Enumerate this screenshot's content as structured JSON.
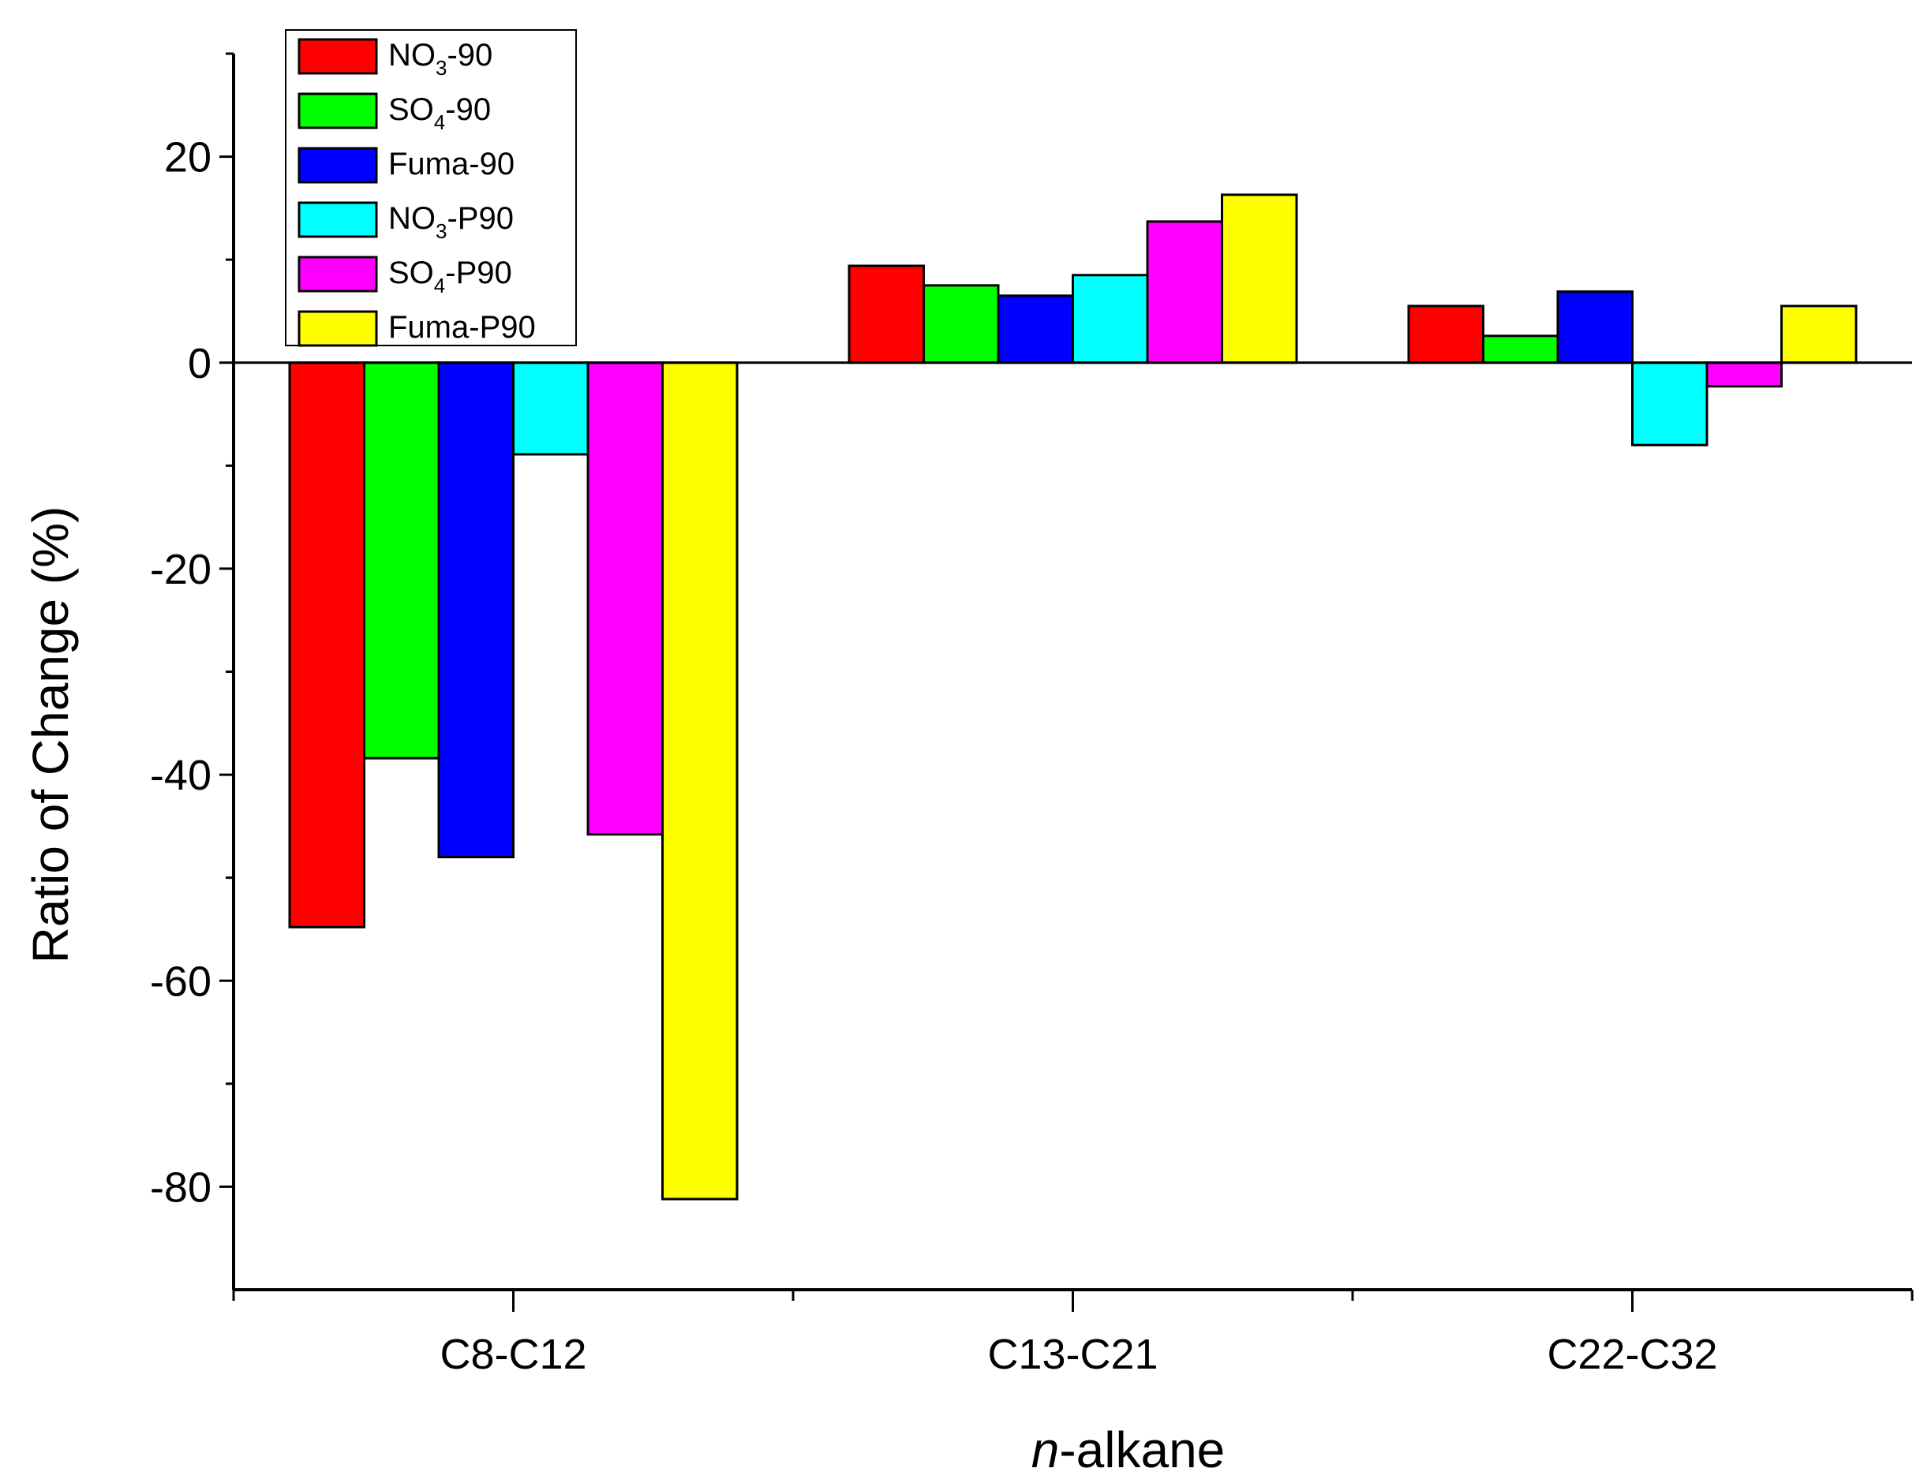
{
  "chart_data": {
    "type": "bar",
    "title": "",
    "xlabel_italic": "n",
    "xlabel_rest": "-alkane",
    "ylabel": "Ratio of Change (%)",
    "categories": [
      "C8-C12",
      "C13-C21",
      "C22-C32"
    ],
    "ylim": [
      -90,
      30
    ],
    "yticks": [
      -80,
      -60,
      -40,
      -20,
      0,
      20
    ],
    "grid": false,
    "legend_position": "top-left",
    "series": [
      {
        "name": "NO3-90",
        "label_main": "NO",
        "label_sub": "3",
        "label_suffix": "-90",
        "color": "#ff0000",
        "values": [
          -54.8,
          9.4,
          5.5
        ]
      },
      {
        "name": "SO4-90",
        "label_main": "SO",
        "label_sub": "4",
        "label_suffix": "-90",
        "color": "#00ff00",
        "values": [
          -38.4,
          7.5,
          2.6
        ]
      },
      {
        "name": "Fuma-90",
        "label_main": "Fuma-90",
        "label_sub": "",
        "label_suffix": "",
        "color": "#0000ff",
        "values": [
          -48.0,
          6.5,
          6.9
        ]
      },
      {
        "name": "NO3-P90",
        "label_main": "NO",
        "label_sub": "3",
        "label_suffix": "-P90",
        "color": "#00ffff",
        "values": [
          -8.9,
          8.5,
          -8.0
        ]
      },
      {
        "name": "SO4-P90",
        "label_main": "SO",
        "label_sub": "4",
        "label_suffix": "-P90",
        "color": "#ff00ff",
        "values": [
          -45.8,
          13.7,
          -2.3
        ]
      },
      {
        "name": "Fuma-P90",
        "label_main": "Fuma-P90",
        "label_sub": "",
        "label_suffix": "",
        "color": "#ffff00",
        "values": [
          -81.2,
          16.3,
          5.5
        ]
      }
    ]
  }
}
